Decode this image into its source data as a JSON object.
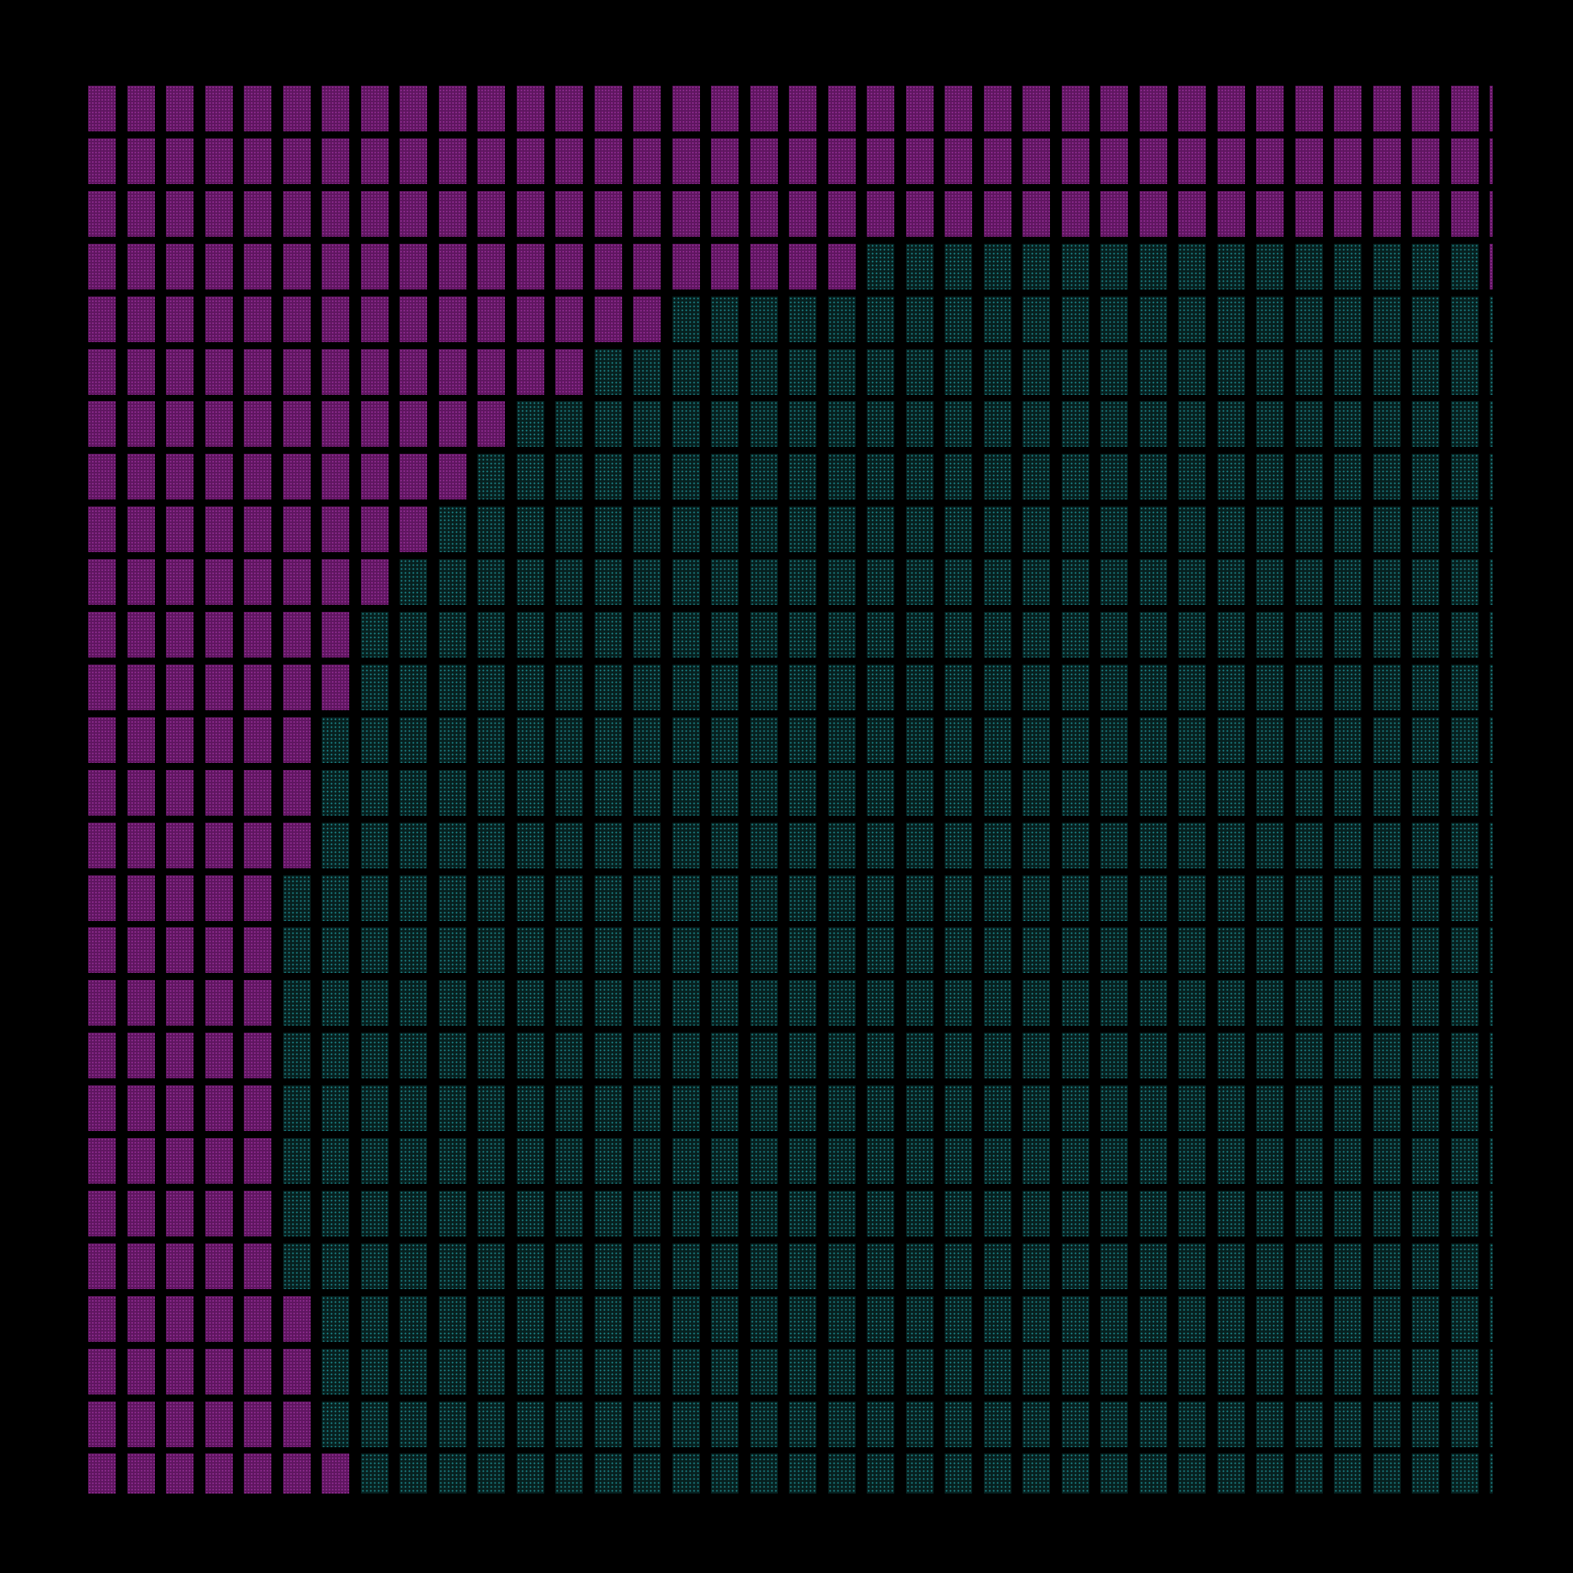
{
  "colors": {
    "background": "#000000",
    "magenta": "#5f1660",
    "magenta_dot": "#8a2a8c",
    "teal": "#07201f",
    "teal_dot": "#1d8a8f"
  },
  "pattern": {
    "columns": 37,
    "rows": 27,
    "magenta_run_per_row": [
      37,
      37,
      37,
      20,
      15,
      13,
      11,
      10,
      9,
      8,
      7,
      7,
      6,
      6,
      6,
      5,
      5,
      5,
      5,
      5,
      5,
      5,
      5,
      6,
      6,
      6,
      7
    ],
    "extra_magenta_cells": [
      {
        "row": 3,
        "col": 36
      }
    ]
  }
}
